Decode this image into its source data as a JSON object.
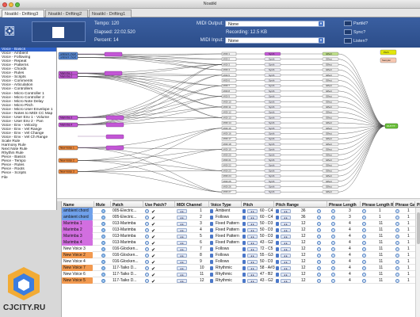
{
  "window": {
    "title": "Noatikl"
  },
  "tabs": [
    {
      "label": "Noatikl - Drifting3"
    },
    {
      "label": "Noatikl - Drifting2"
    },
    {
      "label": "Noatikl - Drifting1"
    }
  ],
  "header": {
    "tempo": "Tempo: 120",
    "elapsed": "Elapsed: 22:02.520",
    "percent": "Percent: 14",
    "recording": "Recording: 12.5 KB",
    "midi_output_label": "MIDI Output:",
    "midi_output_value": "None",
    "midi_input_label": "MIDI Input:",
    "midi_input_value": "None",
    "checks": [
      "Partikl?",
      "Sync?",
      "Listen?"
    ]
  },
  "left_list": {
    "selected_index": 0,
    "items": [
      "Voice - Basics",
      "Voice - Ambient",
      "Voice - Following",
      "Voice - Repeat",
      "Voice - Patterns",
      "Voice - Chords",
      "Voice - Rules",
      "Voice - Scripts",
      "Voice - Comments",
      "Voice - Articulation",
      "Voice - Controllers",
      "Voice - Micro Controller 1",
      "Voice - Micro Controller 2",
      "Voice - Micro Note Delay",
      "Voice - Micro Pitch",
      "Voice - Micro User Envelope 1",
      "Voice - Notes to MIDI CC Map",
      "Voice - User Env 1 - Volume",
      "Voice - User Env 2 - Pan",
      "Voice - Env - Velocity",
      "Voice - Env - Vel Range",
      "Voice - Env - Vel Change",
      "Voice - Env - Vel Ch Range",
      "Scale Rule",
      "Harmony Rule",
      "Next Note Rule",
      "Rhythm Rule",
      "Piece - Basics",
      "Piece - Tempo",
      "Piece - Rules",
      "Piece - Roots",
      "Piece - Scripts",
      "File"
    ]
  },
  "graph": {
    "voice_nodes": [
      {
        "label": "ambient chord",
        "color": "#5a8fe0"
      },
      {
        "label": "ambient chord",
        "color": "#5a8fe0"
      },
      {
        "label": "Marimba 1",
        "color": "#c356d6"
      },
      {
        "label": "Marimba 2",
        "color": "#c356d6"
      },
      {
        "label": "Marimba 3",
        "color": "#c356d6"
      },
      {
        "label": "Marimba 4",
        "color": "#c356d6"
      },
      {
        "label": "New Voice 1",
        "color": "#f08a3c"
      },
      {
        "label": "New Voice 2",
        "color": "#f08a3c"
      },
      {
        "label": "New Voice 3",
        "color": "#f08a3c"
      }
    ],
    "midi_labels": [
      "MIDI 1",
      "MIDI 2",
      "MIDI 3",
      "MIDI 4",
      "MIDI 5",
      "MIDI 6",
      "MIDI 7",
      "MIDI 8",
      "MIDI 9",
      "MIDI 10",
      "MIDI 11",
      "MIDI 12",
      "MIDI 13",
      "MIDI 14",
      "MIDI 15",
      "MIDI 16",
      "MIDI 17",
      "MIDI 18",
      "MIDI 19",
      "MIDI 20",
      "MIDI 21",
      "MIDI 22",
      "MIDI 23",
      "MIDI 24",
      "MIDI 25",
      "MIDI 26",
      "MIDI 27"
    ],
    "synth_label": "Synth",
    "effect_label": "Effect",
    "out_label": "OUT TT",
    "side_labels": [
      "Pitch",
      "Sampler"
    ]
  },
  "table": {
    "columns": [
      "Name",
      "Mute",
      "Patch",
      "Use Patch?",
      "MIDI Channel",
      "Voice Type",
      "Pitch",
      "Pitch Range",
      "Phrase Length",
      "Phrase Length Range",
      "Phrase Gaps",
      "Phrase G"
    ],
    "rows": [
      {
        "name": "ambient chord",
        "name_color": "#6fa0ea",
        "patch": "005-Electric...",
        "channel": "1",
        "type": "Ambient",
        "pitch": "60 - C4",
        "range": "36",
        "plen": "3",
        "plr": "1",
        "gaps": "1",
        "pg": "1"
      },
      {
        "name": "ambient chord",
        "name_color": "#6fa0ea",
        "patch": "005-Electric...",
        "channel": "2",
        "type": "Follows",
        "pitch": "60 - C4",
        "range": "36",
        "plen": "3",
        "plr": "1",
        "gaps": "1",
        "pg": "1"
      },
      {
        "name": "Marimba 1",
        "name_color": "#d26ee0",
        "patch": "013-Marimba",
        "channel": "3",
        "type": "Fixed Pattern",
        "pitch": "50 - D3",
        "range": "12",
        "plen": "4",
        "plr": "11",
        "gaps": "1",
        "pg": "1"
      },
      {
        "name": "Marimba 2",
        "name_color": "#d26ee0",
        "patch": "013-Marimba",
        "channel": "4",
        "type": "Fixed Pattern",
        "pitch": "50 - D3",
        "range": "12",
        "plen": "4",
        "plr": "11",
        "gaps": "1",
        "pg": "1"
      },
      {
        "name": "Marimba 3",
        "name_color": "#d26ee0",
        "patch": "013-Marimba",
        "channel": "5",
        "type": "Fixed Pattern",
        "pitch": "50 - D3",
        "range": "12",
        "plen": "4",
        "plr": "11",
        "gaps": "1",
        "pg": "1"
      },
      {
        "name": "Marimba 4",
        "name_color": "#d26ee0",
        "patch": "013-Marimba",
        "channel": "6",
        "type": "Fixed Pattern",
        "pitch": "43 - G2",
        "range": "12",
        "plen": "4",
        "plr": "11",
        "gaps": "1",
        "pg": "1"
      },
      {
        "name": "New Voice 3",
        "name_color": "#ffffff",
        "patch": "016-Glocken...",
        "channel": "7",
        "type": "Follows",
        "pitch": "72 - C5",
        "range": "12",
        "plen": "4",
        "plr": "11",
        "gaps": "1",
        "pg": "1"
      },
      {
        "name": "New Voice 2",
        "name_color": "#f29a50",
        "patch": "016-Glocken...",
        "channel": "8",
        "type": "Follows",
        "pitch": "55 - G3",
        "range": "12",
        "plen": "4",
        "plr": "11",
        "gaps": "1",
        "pg": "1"
      },
      {
        "name": "New Voice 4",
        "name_color": "#ffffff",
        "patch": "016-Glocken...",
        "channel": "9",
        "type": "Follows",
        "pitch": "50 - D3",
        "range": "12",
        "plen": "4",
        "plr": "11",
        "gaps": "1",
        "pg": "1"
      },
      {
        "name": "New Voice 7",
        "name_color": "#f29a50",
        "patch": "117-Taiko D...",
        "channel": "10",
        "type": "Rhythmic",
        "pitch": "58 - A#3",
        "range": "12",
        "plen": "4",
        "plr": "11",
        "gaps": "1",
        "pg": "1"
      },
      {
        "name": "New Voice 6",
        "name_color": "#ffffff",
        "patch": "117-Taiko D...",
        "channel": "11",
        "type": "Rhythmic",
        "pitch": "47 - B2",
        "range": "12",
        "plen": "4",
        "plr": "11",
        "gaps": "1",
        "pg": "1"
      },
      {
        "name": "New Voice 5",
        "name_color": "#f29a50",
        "patch": "117-Taiko D...",
        "channel": "12",
        "type": "Rhythmic",
        "pitch": "43 - G2",
        "range": "12",
        "plen": "4",
        "plr": "11",
        "gaps": "1",
        "pg": "1"
      }
    ]
  },
  "watermark": {
    "text": "CJCITY.RU"
  }
}
